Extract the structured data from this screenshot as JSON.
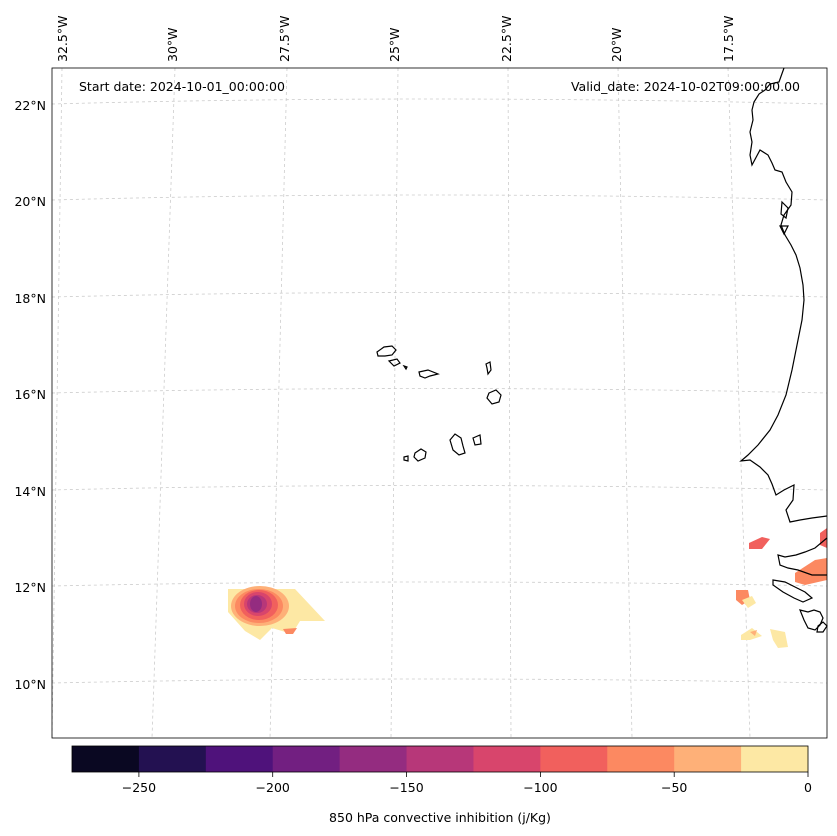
{
  "map": {
    "start_date_label": "Start date: 2024-10-01_00:00:00",
    "valid_date_label": "Valid_date: 2024-10-02T09:00:00.00",
    "lon_labels": [
      "32.5°W",
      "30°W",
      "27.5°W",
      "25°W",
      "22.5°W",
      "20°W",
      "17.5°W"
    ],
    "lat_labels": [
      "22°N",
      "20°N",
      "18°N",
      "16°N",
      "14°N",
      "12°N",
      "10°N"
    ],
    "coastline_color": "#000000",
    "gridline_color": "#cccccc"
  },
  "colorbar": {
    "label": "850 hPa convective inhibition (j/Kg)",
    "tick_labels": [
      "−250",
      "−200",
      "−150",
      "−100",
      "−50",
      "0"
    ],
    "bins": [
      -275,
      -250,
      -225,
      -200,
      -175,
      -150,
      -125,
      -100,
      -75,
      -50,
      -25,
      0
    ],
    "colors": [
      "#0a0822",
      "#231151",
      "#4f127b",
      "#721f81",
      "#942c80",
      "#b73779",
      "#d8456c",
      "#f1605d",
      "#fc8961",
      "#feb078",
      "#fde8a4"
    ]
  }
}
